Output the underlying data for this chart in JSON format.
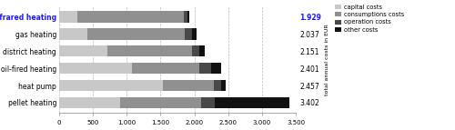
{
  "categories": [
    "Infrared heating",
    "gas heating",
    "district heating",
    "oil-fired heating",
    "heat pump",
    "pellet heating"
  ],
  "totals_str": [
    "1.929",
    "2.037",
    "2.151",
    "2.401",
    "2.457",
    "3.402"
  ],
  "segments": {
    "capital costs": [
      270,
      420,
      720,
      1080,
      1530,
      900
    ],
    "consumptions costs": [
      1580,
      1440,
      1240,
      990,
      760,
      1200
    ],
    "operation costs": [
      50,
      107,
      110,
      181,
      107,
      200
    ],
    "other costs": [
      29,
      70,
      81,
      150,
      60,
      1102
    ]
  },
  "colors": {
    "capital costs": "#c8c8c8",
    "consumptions costs": "#909090",
    "operation costs": "#484848",
    "other costs": "#111111"
  },
  "first_label_color": "#1a1aff",
  "xlim": [
    0,
    3500
  ],
  "xticks": [
    0,
    500,
    1000,
    1500,
    2000,
    2500,
    3000,
    3500
  ],
  "xtick_labels": [
    "0",
    "500",
    "1.000",
    "1.500",
    "2.000",
    "2.500",
    "3.000",
    "3.500"
  ],
  "ylabel_right": "total annual costs in EUR",
  "legend_labels": [
    "capital costs",
    "consumptions costs",
    "operation costs",
    "other costs"
  ],
  "background_color": "#ffffff",
  "figwidth": 5.0,
  "figheight": 1.43,
  "dpi": 100
}
